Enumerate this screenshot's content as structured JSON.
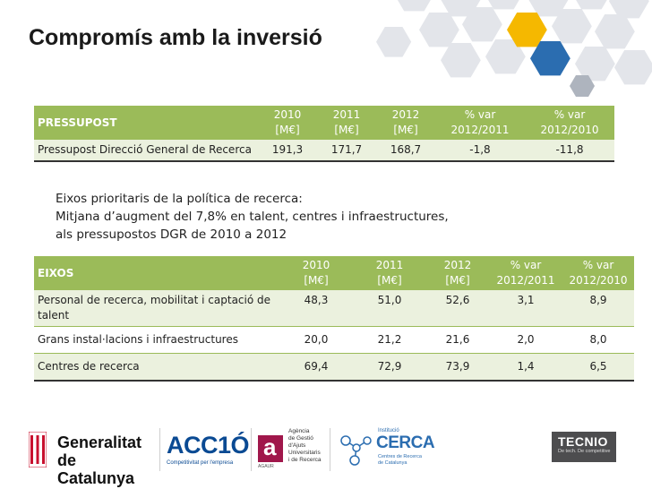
{
  "title": "Compromís amb la inversió",
  "table1": {
    "header": [
      "PRESSUPOST",
      "2010\n[M€]",
      "2011\n[M€]",
      "2012\n[M€]",
      "% var\n2012/2011",
      "% var\n2012/2010"
    ],
    "rows": [
      [
        "Pressupost Direcció General de Recerca",
        "191,3",
        "171,7",
        "168,7",
        "-1,8",
        "-11,8"
      ]
    ]
  },
  "note": {
    "lines": [
      "Eixos prioritaris de la política de recerca:",
      "Mitjana d’augment del 7,8% en talent, centres i infraestructures,",
      "als pressupostos DGR de 2010 a 2012"
    ]
  },
  "table2": {
    "header": [
      "EIXOS",
      "2010\n[M€]",
      "2011\n[M€]",
      "2012\n[M€]",
      "% var\n2012/2011",
      "% var\n2012/2010"
    ],
    "rows": [
      [
        "Personal de recerca,  mobilitat i captació de talent",
        "48,3",
        "51,0",
        "52,6",
        "3,1",
        "8,9"
      ],
      [
        "Grans instal·lacions i infraestructures",
        "20,0",
        "21,2",
        "21,6",
        "2,0",
        "8,0"
      ],
      [
        "Centres de recerca",
        "69,4",
        "72,9",
        "73,9",
        "1,4",
        "6,5"
      ]
    ]
  },
  "logos": {
    "generalitat": [
      "Generalitat",
      "de Catalunya"
    ],
    "acc10": "ACC1Ó",
    "acc10_tagline": "Competitivitat per l'empresa",
    "agaur_letter": "a",
    "agaur_abbr": "AGAUR",
    "agaur": [
      "Agència",
      "de Gestió",
      "d'Ajuts",
      "Universitaris",
      "i de Recerca"
    ],
    "cerca_small": "Institució",
    "cerca": "CERCA",
    "cerca_sub": [
      "Centres de Recerca",
      "de Catalunya"
    ],
    "tecnio": "TECNIO",
    "tecnio_sub": "De tech. De competitive"
  },
  "colors": {
    "table_header": "#9bbb59",
    "table_zebra": "#ebf1de",
    "hex_yellow": "#f5b800",
    "hex_blue": "#2b6db0",
    "hex_gray": "#d3d6dc"
  }
}
